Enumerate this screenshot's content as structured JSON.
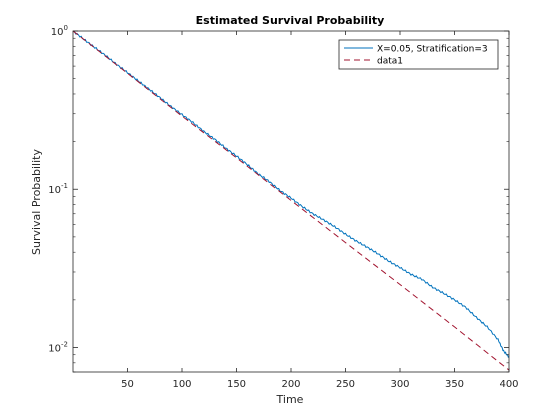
{
  "chart_data": {
    "type": "line",
    "title": "Estimated Survival Probability",
    "xlabel": "Time",
    "ylabel": "Survival Probability",
    "xlim": [
      0,
      400
    ],
    "ylim": [
      0.007,
      1
    ],
    "yscale": "log",
    "grid": false,
    "legend_position": "top-right",
    "x_ticks": [
      50,
      100,
      150,
      200,
      250,
      300,
      350,
      400
    ],
    "x_tick_labels": [
      "50",
      "100",
      "150",
      "200",
      "250",
      "300",
      "350",
      "400"
    ],
    "y_ticks": [
      0.01,
      0.1,
      1
    ],
    "y_tick_labels": [
      {
        "base": "10",
        "exp": "-2"
      },
      {
        "base": "10",
        "exp": "-1"
      },
      {
        "base": "10",
        "exp": "0"
      }
    ],
    "series": [
      {
        "name": "X=0.05, Stratification=3",
        "color": "#0072BD",
        "style": "solid",
        "x": [
          0,
          10,
          20,
          30,
          40,
          50,
          60,
          70,
          80,
          90,
          100,
          110,
          120,
          130,
          140,
          150,
          160,
          170,
          180,
          190,
          200,
          210,
          220,
          230,
          240,
          250,
          260,
          270,
          280,
          290,
          300,
          310,
          320,
          330,
          340,
          350,
          360,
          370,
          380,
          390,
          395,
          400
        ],
        "y": [
          1.0,
          0.886,
          0.786,
          0.699,
          0.615,
          0.546,
          0.483,
          0.428,
          0.378,
          0.333,
          0.296,
          0.264,
          0.232,
          0.207,
          0.182,
          0.162,
          0.143,
          0.125,
          0.112,
          0.098,
          0.088,
          0.078,
          0.07,
          0.064,
          0.058,
          0.052,
          0.047,
          0.043,
          0.039,
          0.035,
          0.032,
          0.029,
          0.027,
          0.024,
          0.022,
          0.02,
          0.018,
          0.0155,
          0.0135,
          0.0112,
          0.0095,
          0.0087
        ]
      },
      {
        "name": "data1",
        "color": "#A2142F",
        "style": "dashed",
        "x": [
          0,
          50,
          100,
          150,
          200,
          250,
          300,
          350,
          400
        ],
        "y": [
          1.0,
          0.54,
          0.29,
          0.158,
          0.085,
          0.046,
          0.025,
          0.0135,
          0.0072
        ]
      }
    ]
  }
}
